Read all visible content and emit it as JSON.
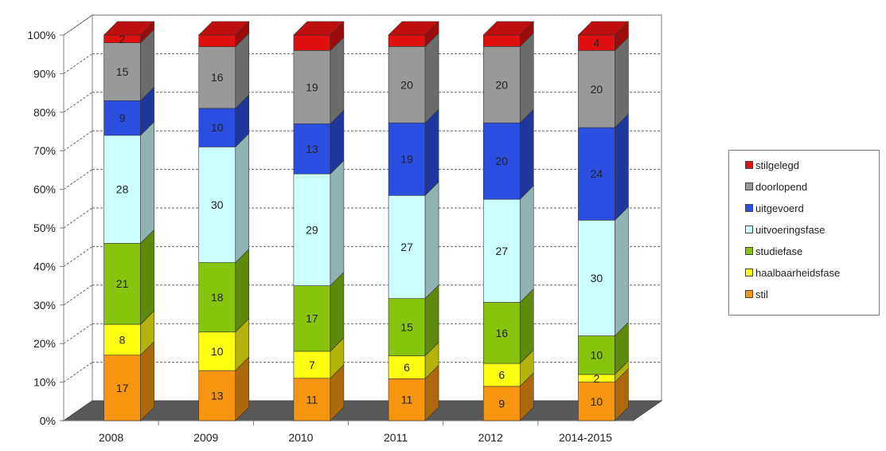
{
  "chart_data": {
    "type": "bar",
    "stacked": true,
    "percent": true,
    "categories": [
      "2008",
      "2009",
      "2010",
      "2011",
      "2012",
      "2014-2015"
    ],
    "series": [
      {
        "name": "stil",
        "color": "#f79410",
        "values": [
          17,
          13,
          11,
          11,
          9,
          10
        ],
        "labels": [
          "17",
          "13",
          "11",
          "11",
          "9",
          "10"
        ]
      },
      {
        "name": "haalbaarheidsfase",
        "color": "#ffff11",
        "values": [
          8,
          10,
          7,
          6,
          6,
          2
        ],
        "labels": [
          "8",
          "10",
          "7",
          "6",
          "6",
          "2"
        ]
      },
      {
        "name": "studiefase",
        "color": "#88c40e",
        "values": [
          21,
          18,
          17,
          15,
          16,
          10
        ],
        "labels": [
          "21",
          "18",
          "17",
          "15",
          "16",
          "10"
        ]
      },
      {
        "name": "uitvoeringsfase",
        "color": "#ccffff",
        "values": [
          28,
          30,
          29,
          27,
          27,
          30
        ],
        "labels": [
          "28",
          "30",
          "29",
          "27",
          "27",
          "30"
        ]
      },
      {
        "name": "uitgevoerd",
        "color": "#2a4fe0",
        "values": [
          9,
          10,
          13,
          19,
          20,
          24
        ],
        "labels": [
          "9",
          "10",
          "13",
          "19",
          "20",
          "24"
        ]
      },
      {
        "name": "doorlopend",
        "color": "#999999",
        "values": [
          15,
          16,
          19,
          20,
          20,
          20
        ],
        "labels": [
          "15",
          "16",
          "19",
          "20",
          "20",
          "20"
        ]
      },
      {
        "name": "stilgelegd",
        "color": "#e01010",
        "values": [
          2,
          3,
          4,
          3,
          3,
          4
        ],
        "labels": [
          "2",
          "",
          "",
          "",
          "",
          "4"
        ]
      }
    ],
    "y_ticks": [
      "0%",
      "10%",
      "20%",
      "30%",
      "40%",
      "50%",
      "60%",
      "70%",
      "80%",
      "90%",
      "100%"
    ],
    "ylim": [
      0,
      100
    ],
    "grid": true,
    "floor_color": "#595959",
    "legend_position": "right"
  }
}
